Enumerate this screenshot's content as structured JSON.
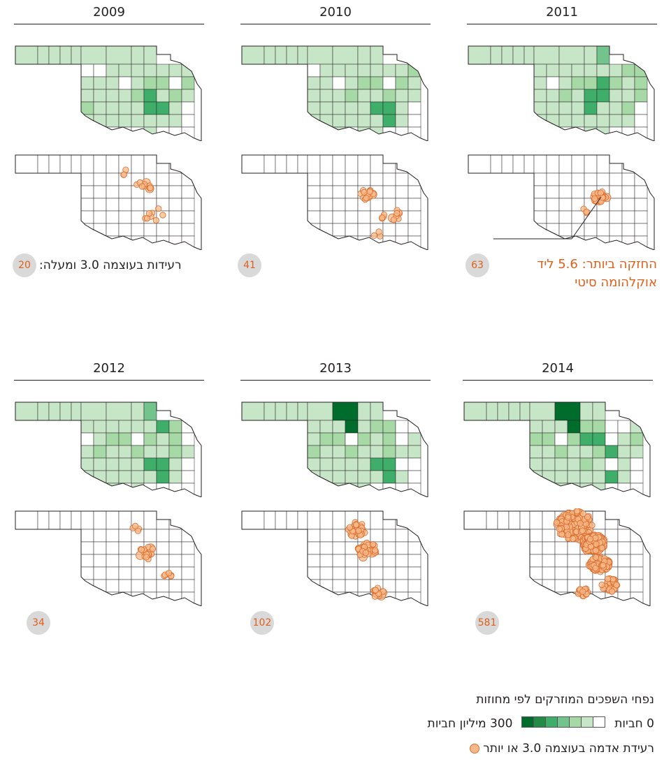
{
  "panels": [
    {
      "year": "2009",
      "count": "20"
    },
    {
      "year": "2010",
      "count": "41"
    },
    {
      "year": "2011",
      "count": "63"
    },
    {
      "year": "2012",
      "count": "34"
    },
    {
      "year": "2013",
      "count": "102"
    },
    {
      "year": "2014",
      "count": "581"
    }
  ],
  "count_label": "רעידות בעוצמה 3.0 ומעלה:",
  "annotation": {
    "line1": "החזקה ביותר: 5.6 ליד",
    "line2": "אוקלהומה סיטי"
  },
  "legend": {
    "title": "נפחי השפכים המוזרקים לפי מחוזות",
    "min_label": "0 חביות",
    "max_label": "300 מיליון חביות",
    "quake_label": "רעידת אדמה בעוצמה 3.0 או יותר"
  },
  "colors": {
    "ramp": [
      "#ffffff",
      "#c7e6c7",
      "#a6d9a6",
      "#72c38c",
      "#3fae6a",
      "#238b45",
      "#006d2c"
    ],
    "outline": "#231f20",
    "quake_fill": "#f8b98a",
    "quake_stroke": "#d96a2b",
    "badge": "#d9d9d9",
    "accent": "#e0601b"
  }
}
